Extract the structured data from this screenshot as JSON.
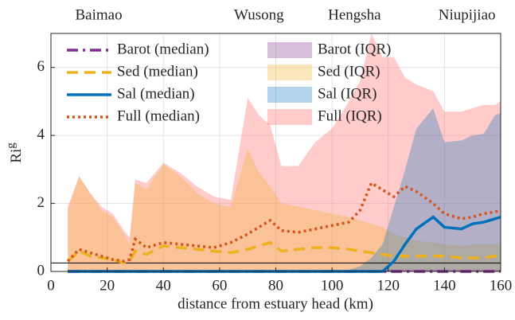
{
  "chart_data": {
    "type": "line",
    "xlabel": "distance from estuary head (km)",
    "ylabel": {
      "text": "Ri",
      "subscript": "g"
    },
    "xlim": [
      0,
      160
    ],
    "ylim": [
      0,
      7
    ],
    "xticks": [
      0,
      20,
      40,
      60,
      80,
      100,
      120,
      140,
      160
    ],
    "yticks": [
      0,
      2,
      4,
      6
    ],
    "grid": true,
    "reference_line": 0.25,
    "stations": [
      {
        "label": "Baimao",
        "x": 17
      },
      {
        "label": "Wusong",
        "x": 74
      },
      {
        "label": "Hengsha",
        "x": 108
      },
      {
        "label": "Niupijiao",
        "x": 148
      }
    ],
    "x": [
      6,
      10,
      14,
      18,
      22,
      26,
      28,
      30,
      34,
      40,
      46,
      52,
      58,
      64,
      70,
      74,
      78,
      82,
      88,
      94,
      100,
      106,
      110,
      114,
      118,
      122,
      126,
      130,
      136,
      140,
      146,
      150,
      154,
      158,
      160
    ],
    "bands": [
      {
        "name": "Full (IQR)",
        "color": "#ff6b6b",
        "opacity": 0.35,
        "lower": [
          0,
          0,
          0,
          0,
          0,
          0,
          0,
          0,
          0,
          0,
          0,
          0,
          0,
          0,
          0,
          0,
          0,
          0,
          0,
          0,
          0,
          0,
          0,
          0,
          0,
          0,
          0,
          0,
          0,
          0,
          0,
          0,
          0,
          0,
          0
        ],
        "upper": [
          1.9,
          2.8,
          2.3,
          1.9,
          1.7,
          1.2,
          1.0,
          2.7,
          2.6,
          3.2,
          2.9,
          2.5,
          2.2,
          2.1,
          5.1,
          4.6,
          4.3,
          3.1,
          3.1,
          3.8,
          4.2,
          5.0,
          5.6,
          7.0,
          6.3,
          6.3,
          5.7,
          5.5,
          5.3,
          4.7,
          4.7,
          4.8,
          4.9,
          4.9,
          5.0
        ]
      },
      {
        "name": "Sed (IQR)",
        "color": "#EDB120",
        "opacity": 0.3,
        "lower": [
          0,
          0,
          0,
          0,
          0,
          0,
          0,
          0,
          0,
          0,
          0,
          0,
          0,
          0,
          0,
          0,
          0,
          0,
          0,
          0,
          0,
          0,
          0,
          0,
          0,
          0,
          0,
          0,
          0,
          0,
          0,
          0,
          0,
          0,
          0
        ],
        "upper": [
          1.8,
          2.8,
          2.3,
          1.8,
          1.6,
          1.1,
          0.8,
          2.6,
          2.4,
          3.15,
          2.8,
          2.3,
          2.0,
          1.9,
          3.6,
          2.9,
          2.5,
          2.0,
          1.9,
          1.8,
          1.7,
          1.6,
          1.5,
          1.4,
          1.3,
          1.1,
          1.0,
          0.9,
          0.85,
          0.8,
          0.75,
          0.8,
          0.8,
          0.8,
          0.8
        ]
      },
      {
        "name": "Sal (IQR)",
        "color": "#0072BD",
        "opacity": 0.3,
        "lower": [
          0,
          0,
          0,
          0,
          0,
          0,
          0,
          0,
          0,
          0,
          0,
          0,
          0,
          0,
          0,
          0,
          0,
          0,
          0,
          0,
          0,
          0,
          0,
          0,
          0,
          0,
          0,
          0,
          0,
          0,
          0,
          0,
          0,
          0,
          0
        ],
        "upper": [
          0,
          0,
          0,
          0,
          0,
          0,
          0,
          0,
          0,
          0,
          0,
          0,
          0,
          0,
          0,
          0,
          0,
          0,
          0,
          0,
          0,
          0.05,
          0.15,
          0.4,
          0.8,
          1.9,
          3.0,
          4.2,
          4.8,
          3.8,
          3.85,
          4.0,
          4.05,
          4.6,
          4.65
        ]
      },
      {
        "name": "Barot (IQR)",
        "color": "#7E2F8E",
        "opacity": 0.3,
        "lower": [
          0,
          0,
          0,
          0,
          0,
          0,
          0,
          0,
          0,
          0,
          0,
          0,
          0,
          0,
          0,
          0,
          0,
          0,
          0,
          0,
          0,
          0,
          0,
          0,
          0,
          0,
          0,
          0,
          0,
          0,
          0,
          0,
          0,
          0,
          0
        ],
        "upper": [
          0.05,
          0.05,
          0.05,
          0.05,
          0.05,
          0.05,
          0.05,
          0.05,
          0.05,
          0.05,
          0.05,
          0.05,
          0.05,
          0.05,
          0.05,
          0.05,
          0.05,
          0.05,
          0.05,
          0.05,
          0.05,
          0.05,
          0.05,
          0.05,
          0.05,
          0.05,
          0.05,
          0.05,
          0.05,
          0.05,
          0.05,
          0.05,
          0.05,
          0.05,
          0.05
        ]
      }
    ],
    "series": [
      {
        "name": "Barot (median)",
        "color": "#7E2F8E",
        "line_style": "dashdot",
        "values": [
          0,
          0,
          0,
          0,
          0,
          0,
          0,
          0,
          0,
          0,
          0,
          0,
          0,
          0,
          0,
          0,
          0,
          0,
          0,
          0,
          0,
          0,
          0,
          0,
          0,
          0,
          0,
          0,
          0,
          0,
          0,
          0,
          0,
          0,
          0
        ]
      },
      {
        "name": "Sed (median)",
        "color": "#EDB120",
        "line_style": "dashed",
        "values": [
          0.3,
          0.6,
          0.45,
          0.4,
          0.35,
          0.25,
          0.3,
          0.6,
          0.5,
          0.75,
          0.7,
          0.65,
          0.6,
          0.55,
          0.65,
          0.75,
          0.85,
          0.6,
          0.65,
          0.7,
          0.7,
          0.65,
          0.6,
          0.55,
          0.5,
          0.45,
          0.45,
          0.45,
          0.45,
          0.45,
          0.4,
          0.4,
          0.4,
          0.45,
          0.45
        ]
      },
      {
        "name": "Sal (median)",
        "color": "#0072BD",
        "line_style": "solid",
        "values": [
          0,
          0,
          0,
          0,
          0,
          0,
          0,
          0,
          0,
          0,
          0,
          0,
          0,
          0,
          0,
          0,
          0,
          0,
          0,
          0,
          0,
          0,
          0,
          0,
          0,
          0.3,
          0.8,
          1.25,
          1.6,
          1.3,
          1.25,
          1.4,
          1.45,
          1.55,
          1.6
        ]
      },
      {
        "name": "Full (median)",
        "color": "#D95319",
        "line_style": "dotted",
        "values": [
          0.3,
          0.65,
          0.55,
          0.45,
          0.35,
          0.3,
          0.35,
          0.95,
          0.7,
          0.85,
          0.8,
          0.75,
          0.7,
          0.85,
          1.1,
          1.3,
          1.5,
          1.2,
          1.15,
          1.25,
          1.35,
          1.45,
          1.8,
          2.6,
          2.4,
          2.2,
          2.5,
          2.35,
          2.0,
          1.7,
          1.55,
          1.6,
          1.7,
          1.75,
          1.8
        ]
      }
    ]
  }
}
